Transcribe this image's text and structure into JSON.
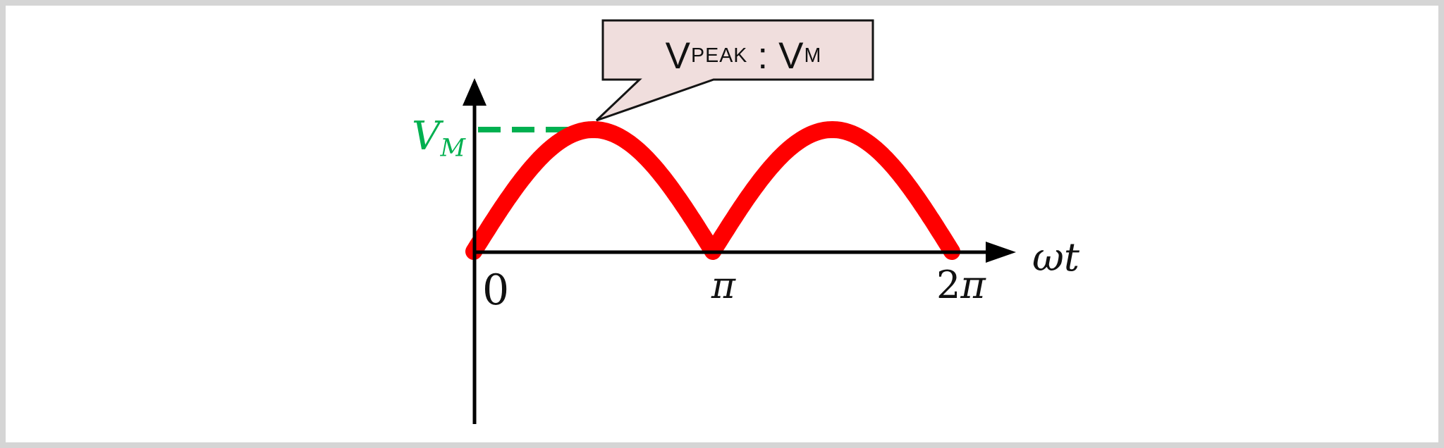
{
  "figure": {
    "description": "Full-wave rectified sine voltage waveform with peak value annotated"
  },
  "colors": {
    "curve": "#ff0000",
    "guide": "#00b050",
    "axis": "#000000",
    "callout_fill": "#f0dedd",
    "callout_stroke": "#141414",
    "frame": "#d5d5d5",
    "text": "#111111"
  },
  "labels": {
    "y_peak": {
      "base": "V",
      "sub": "M"
    },
    "x_origin": "0",
    "x_pi": "π",
    "x_two_pi": {
      "coeff": "2",
      "pi": "π"
    },
    "x_axis": "ωt"
  },
  "callout": {
    "v1": "V",
    "sub1": "PEAK",
    "sep": ":",
    "v2": "V",
    "sub2": "M"
  },
  "chart_data": {
    "type": "line",
    "title": "",
    "xlabel": "ωt",
    "ylabel": "",
    "x_ticks": [
      "0",
      "π",
      "2π"
    ],
    "xlim_pi": [
      0,
      2
    ],
    "ylim_vm": [
      0,
      1
    ],
    "grid": false,
    "legend": "none",
    "series": [
      {
        "name": "full-wave rectified sine",
        "formula": "v(ωt) = V_M * |sin(ωt)|",
        "color": "#ff0000",
        "x_pi": [
          0,
          0.25,
          0.5,
          0.75,
          1,
          1.25,
          1.5,
          1.75,
          2
        ],
        "y_vm": [
          0,
          0.707,
          1,
          0.707,
          0,
          0.707,
          1,
          0.707,
          0
        ]
      }
    ],
    "annotations": [
      {
        "type": "callout",
        "text": "V_PEAK : V_M",
        "points_to_x_pi": 0.5,
        "points_to_y_vm": 1
      },
      {
        "type": "guide_line",
        "style": "dashed",
        "color": "#00b050",
        "y_vm": 1,
        "label": "V_M"
      }
    ]
  }
}
